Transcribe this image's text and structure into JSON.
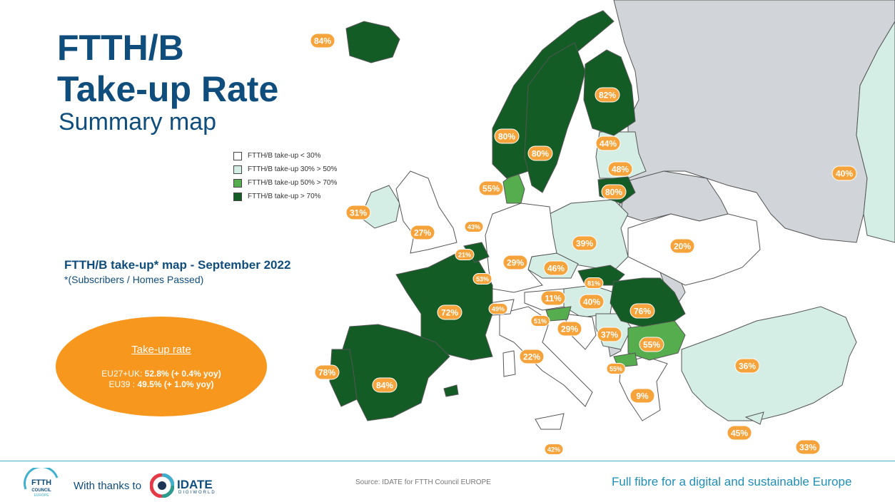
{
  "title": {
    "line1": "FTTH/B",
    "line2": "Take-up Rate",
    "subtitle": "Summary map"
  },
  "legend": [
    {
      "label": "FTTH/B take-up < 30%",
      "color": "#ffffff"
    },
    {
      "label": "FTTH/B take-up 30% > 50%",
      "color": "#d4ede5"
    },
    {
      "label": "FTTH/B take-up 50% > 70%",
      "color": "#56ad4e"
    },
    {
      "label": "FTTH/B take-up > 70%",
      "color": "#135c25"
    }
  ],
  "map_heading": "FTTH/B take-up* map - September 2022",
  "map_note": "*(Subscribers / Homes Passed)",
  "summary": {
    "title": "Take-up rate",
    "line1_prefix": "EU27+UK: ",
    "line1_value": "52.8% (+ 0.4% yoy)",
    "line2_prefix": "EU39 : ",
    "line2_value": "49.5% (+ 1.0% yoy)"
  },
  "badges": [
    "84%",
    "82%",
    "80%",
    "80%",
    "44%",
    "48%",
    "40%",
    "55%",
    "80%",
    "31%",
    "27%",
    "43%",
    "39%",
    "20%",
    "21%",
    "29%",
    "53%",
    "46%",
    "81%",
    "72%",
    "11%",
    "40%",
    "76%",
    "49%",
    "51%",
    "29%",
    "37%",
    "55%",
    "22%",
    "78%",
    "84%",
    "55%",
    "36%",
    "9%",
    "45%",
    "42%",
    "33%"
  ],
  "footer": {
    "thanks": "With thanks to",
    "logo_text": "FTTH COUNCIL EUROPE",
    "idate": "IDATE",
    "idate_sub": "DIGIWORLD",
    "source": "Source: IDATE for FTTH Council EUROPE",
    "tagline": "Full fibre for a digital and sustainable Europe"
  },
  "colors": {
    "dark_green": "#135c25",
    "mid_green": "#56ad4e",
    "light_green": "#d4ede5",
    "grey": "#d1d5d9",
    "orange": "#f5a33a",
    "navy": "#0f4d7d"
  }
}
